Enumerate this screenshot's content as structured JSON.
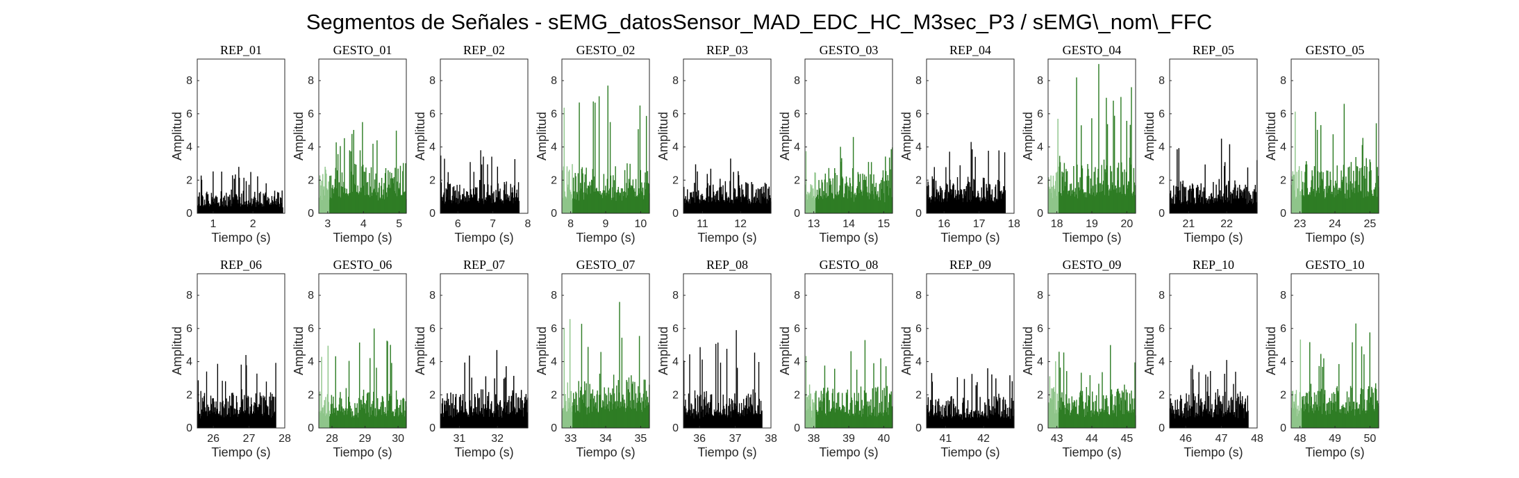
{
  "figure": {
    "title": "Segmentos de Señales - sEMG_datosSensor_MAD_EDC_HC_M3sec_P3 / sEMG\\_nom\\_FFC"
  },
  "chart_data": {
    "type": "bar",
    "subplot_grid": [
      2,
      10
    ],
    "xlabel": "Tiempo (s)",
    "ylabel": "Amplitud",
    "ylim": [
      0,
      9.3
    ],
    "yticks": [
      0,
      2,
      4,
      6,
      8
    ],
    "grid": false,
    "colors": {
      "rep": "#000000",
      "gesto": "#2e7d25",
      "gesto_light": "#8fc58a"
    },
    "panels": [
      {
        "title": "REP_01",
        "kind": "rep",
        "xlim": [
          0.6,
          2.8
        ],
        "xticks": [
          1,
          2
        ],
        "data_end": 2.75,
        "base": 1.0,
        "peak": 2.8,
        "seed": 11
      },
      {
        "title": "GESTO_01",
        "kind": "gesto",
        "xlim": [
          2.75,
          5.2
        ],
        "xticks": [
          3,
          4,
          5
        ],
        "data_end": 5.2,
        "base": 2.2,
        "peak": 5.5,
        "seed": 12
      },
      {
        "title": "REP_02",
        "kind": "rep",
        "xlim": [
          5.5,
          8.0
        ],
        "xticks": [
          6,
          7,
          8
        ],
        "data_end": 7.75,
        "base": 1.5,
        "peak": 3.8,
        "seed": 13
      },
      {
        "title": "GESTO_02",
        "kind": "gesto",
        "xlim": [
          7.75,
          10.25
        ],
        "xticks": [
          8,
          9,
          10
        ],
        "data_end": 10.25,
        "base": 2.1,
        "peak": 7.7,
        "seed": 14
      },
      {
        "title": "REP_03",
        "kind": "rep",
        "xlim": [
          10.5,
          12.8
        ],
        "xticks": [
          11,
          12
        ],
        "data_end": 12.8,
        "base": 1.5,
        "peak": 3.3,
        "seed": 15
      },
      {
        "title": "GESTO_03",
        "kind": "gesto",
        "xlim": [
          12.75,
          15.25
        ],
        "xticks": [
          13,
          14,
          15
        ],
        "data_end": 15.25,
        "base": 1.9,
        "peak": 4.6,
        "seed": 16
      },
      {
        "title": "REP_04",
        "kind": "rep",
        "xlim": [
          15.5,
          18.0
        ],
        "xticks": [
          16,
          17,
          18
        ],
        "data_end": 17.75,
        "base": 1.6,
        "peak": 4.3,
        "seed": 17
      },
      {
        "title": "GESTO_04",
        "kind": "gesto",
        "xlim": [
          17.75,
          20.25
        ],
        "xticks": [
          18,
          19,
          20
        ],
        "data_end": 20.25,
        "base": 2.4,
        "peak": 9.0,
        "seed": 18
      },
      {
        "title": "REP_05",
        "kind": "rep",
        "xlim": [
          20.5,
          22.8
        ],
        "xticks": [
          21,
          22
        ],
        "data_end": 22.8,
        "base": 1.5,
        "peak": 4.5,
        "seed": 19
      },
      {
        "title": "GESTO_05",
        "kind": "gesto",
        "xlim": [
          22.75,
          25.25
        ],
        "xticks": [
          23,
          24,
          25
        ],
        "data_end": 25.25,
        "base": 2.4,
        "peak": 6.6,
        "seed": 20
      },
      {
        "title": "REP_06",
        "kind": "rep",
        "xlim": [
          25.55,
          28.0
        ],
        "xticks": [
          26,
          27,
          28
        ],
        "data_end": 27.75,
        "base": 1.6,
        "peak": 4.4,
        "seed": 21
      },
      {
        "title": "GESTO_06",
        "kind": "gesto",
        "xlim": [
          27.6,
          30.25
        ],
        "xticks": [
          28,
          29,
          30
        ],
        "data_end": 30.25,
        "base": 1.7,
        "peak": 6.0,
        "seed": 22
      },
      {
        "title": "REP_07",
        "kind": "rep",
        "xlim": [
          30.5,
          32.8
        ],
        "xticks": [
          31,
          32
        ],
        "data_end": 32.8,
        "base": 1.6,
        "peak": 4.7,
        "seed": 23
      },
      {
        "title": "GESTO_07",
        "kind": "gesto",
        "xlim": [
          32.75,
          35.25
        ],
        "xticks": [
          33,
          34,
          35
        ],
        "data_end": 35.25,
        "base": 2.3,
        "peak": 7.6,
        "seed": 24
      },
      {
        "title": "REP_08",
        "kind": "rep",
        "xlim": [
          35.55,
          38.0
        ],
        "xticks": [
          36,
          37,
          38
        ],
        "data_end": 37.75,
        "base": 1.6,
        "peak": 5.9,
        "seed": 25
      },
      {
        "title": "GESTO_08",
        "kind": "gesto",
        "xlim": [
          37.75,
          40.25
        ],
        "xticks": [
          38,
          39,
          40
        ],
        "data_end": 40.25,
        "base": 1.8,
        "peak": 5.3,
        "seed": 26
      },
      {
        "title": "REP_09",
        "kind": "rep",
        "xlim": [
          40.5,
          42.8
        ],
        "xticks": [
          41,
          42
        ],
        "data_end": 42.8,
        "base": 1.4,
        "peak": 3.6,
        "seed": 27
      },
      {
        "title": "GESTO_09",
        "kind": "gesto",
        "xlim": [
          42.75,
          45.25
        ],
        "xticks": [
          43,
          44,
          45
        ],
        "data_end": 45.25,
        "base": 1.8,
        "peak": 5.0,
        "seed": 28
      },
      {
        "title": "REP_10",
        "kind": "rep",
        "xlim": [
          45.55,
          48.0
        ],
        "xticks": [
          46,
          47,
          48
        ],
        "data_end": 47.75,
        "base": 1.6,
        "peak": 4.1,
        "seed": 29
      },
      {
        "title": "GESTO_10",
        "kind": "gesto",
        "xlim": [
          47.75,
          50.25
        ],
        "xticks": [
          48,
          49,
          50
        ],
        "data_end": 50.25,
        "base": 1.9,
        "peak": 6.3,
        "seed": 30
      }
    ]
  }
}
